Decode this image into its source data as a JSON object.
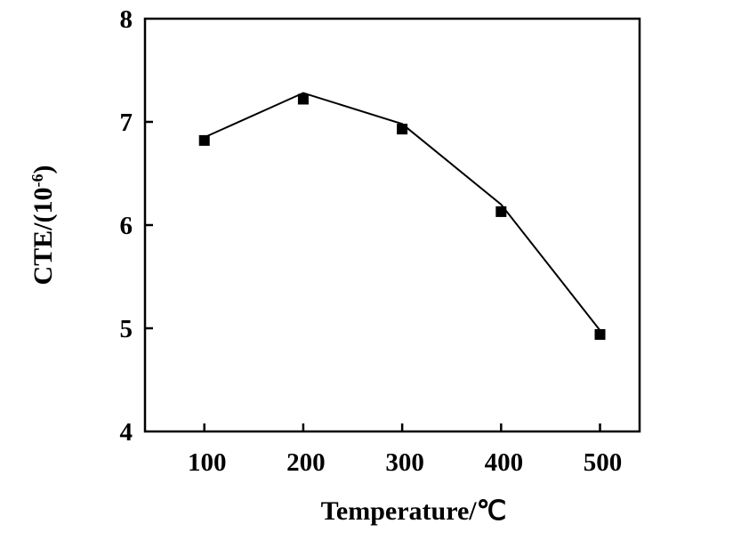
{
  "chart_data": {
    "type": "line",
    "xlabel": "Temperature/℃",
    "ylabel_main": "CTE/(10",
    "ylabel_sup": "-6",
    "ylabel_close": ")",
    "x": [
      100,
      200,
      300,
      400,
      500
    ],
    "series": [
      {
        "values": [
          6.82,
          7.22,
          6.93,
          6.13,
          4.94
        ],
        "line_values": [
          6.85,
          7.28,
          6.98,
          6.2,
          4.98
        ]
      }
    ],
    "xticks": [
      100,
      200,
      300,
      400,
      500
    ],
    "yticks": [
      4,
      5,
      6,
      7,
      8
    ],
    "xlim": [
      40,
      540
    ],
    "ylim": [
      4,
      8
    ],
    "grid": false,
    "marker": "square",
    "color": "#000000"
  }
}
